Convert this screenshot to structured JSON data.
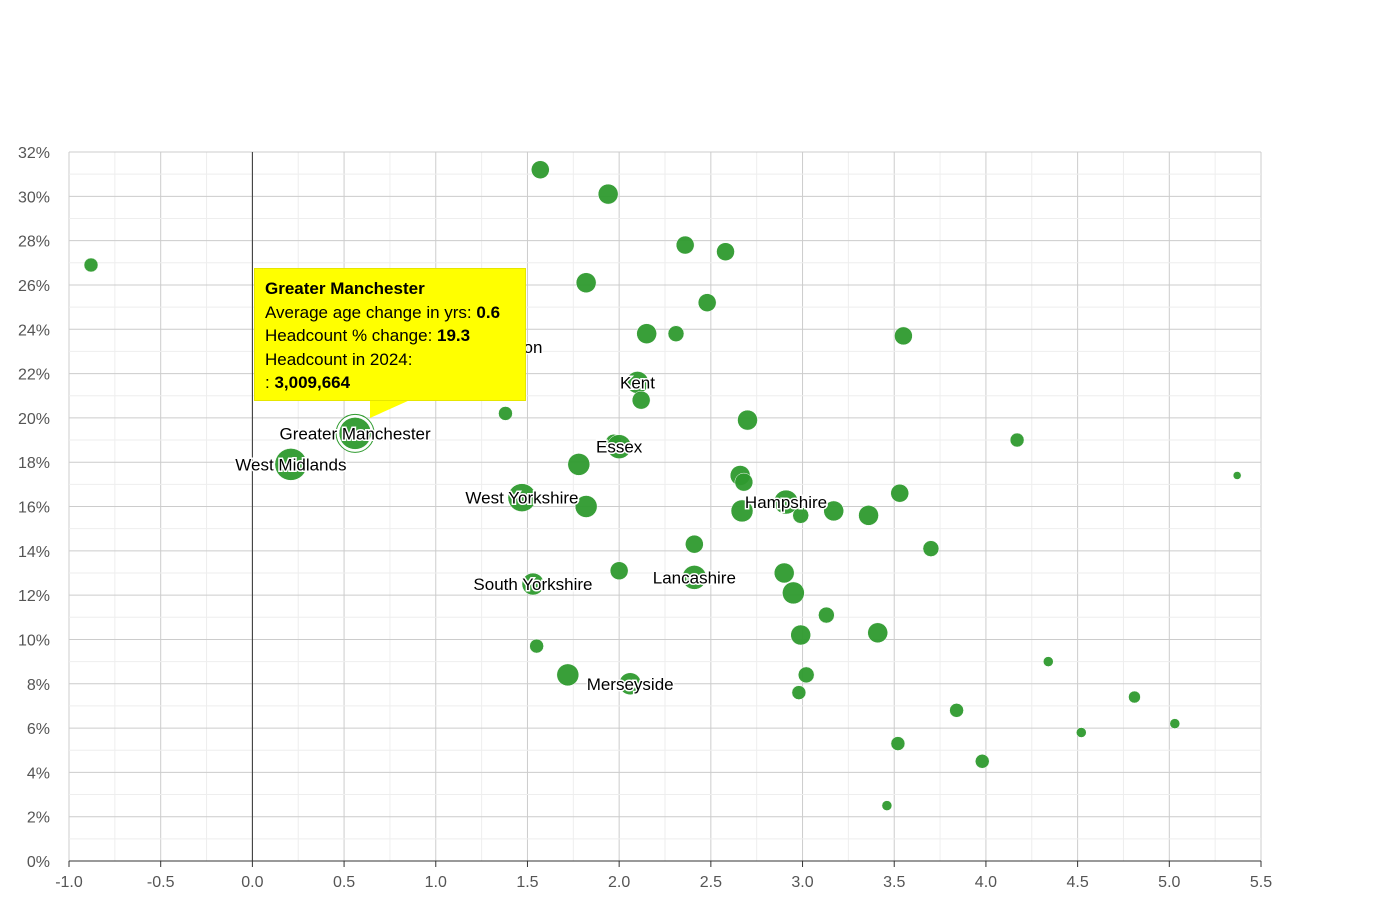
{
  "chart_data": {
    "type": "scatter",
    "subtype": "bubble",
    "title": "",
    "xlabel": "",
    "ylabel": "",
    "xlim": [
      -1.0,
      5.5
    ],
    "ylim": [
      0,
      32
    ],
    "x_ticks": [
      "-1.0",
      "-0.5",
      "0.0",
      "0.5",
      "1.0",
      "1.5",
      "2.0",
      "2.5",
      "3.0",
      "3.5",
      "4.0",
      "4.5",
      "5.0",
      "5.5"
    ],
    "y_ticks": [
      "0%",
      "2%",
      "4%",
      "6%",
      "8%",
      "10%",
      "12%",
      "14%",
      "16%",
      "18%",
      "20%",
      "22%",
      "24%",
      "26%",
      "28%",
      "30%",
      "32%"
    ],
    "grid": true,
    "color": "#2e9a2e",
    "points": [
      {
        "x": -0.88,
        "y": 26.9,
        "size": 7
      },
      {
        "x": 1.57,
        "y": 31.2,
        "size": 9
      },
      {
        "x": 1.94,
        "y": 30.1,
        "size": 10
      },
      {
        "x": 2.36,
        "y": 27.8,
        "size": 9
      },
      {
        "x": 2.58,
        "y": 27.5,
        "size": 9
      },
      {
        "x": 1.82,
        "y": 26.1,
        "size": 10
      },
      {
        "x": 2.48,
        "y": 25.2,
        "size": 9
      },
      {
        "x": 2.15,
        "y": 23.8,
        "size": 10
      },
      {
        "x": 2.31,
        "y": 23.8,
        "size": 8
      },
      {
        "x": 3.55,
        "y": 23.7,
        "size": 9
      },
      {
        "x": 1.35,
        "y": 23.2,
        "size": 13,
        "label": "London",
        "shown_label": "on"
      },
      {
        "x": 2.1,
        "y": 21.6,
        "size": 11,
        "label": "Kent"
      },
      {
        "x": 2.12,
        "y": 20.8,
        "size": 9
      },
      {
        "x": 1.38,
        "y": 20.2,
        "size": 7
      },
      {
        "x": 2.7,
        "y": 19.9,
        "size": 10
      },
      {
        "x": 0.56,
        "y": 19.3,
        "size": 16,
        "label": "Greater Manchester",
        "highlighted": true
      },
      {
        "x": 1.97,
        "y": 18.9,
        "size": 8
      },
      {
        "x": 2.0,
        "y": 18.7,
        "size": 12,
        "label": "Essex"
      },
      {
        "x": 4.17,
        "y": 19.0,
        "size": 7
      },
      {
        "x": 0.21,
        "y": 17.9,
        "size": 16,
        "label": "West Midlands"
      },
      {
        "x": 1.78,
        "y": 17.9,
        "size": 11
      },
      {
        "x": 5.37,
        "y": 17.4,
        "size": 4
      },
      {
        "x": 2.66,
        "y": 17.4,
        "size": 10
      },
      {
        "x": 2.68,
        "y": 17.1,
        "size": 9
      },
      {
        "x": 1.47,
        "y": 16.4,
        "size": 14,
        "label": "West Yorkshire"
      },
      {
        "x": 1.82,
        "y": 16.0,
        "size": 11
      },
      {
        "x": 2.91,
        "y": 16.2,
        "size": 12,
        "label": "Hampshire"
      },
      {
        "x": 2.67,
        "y": 15.8,
        "size": 11
      },
      {
        "x": 2.99,
        "y": 15.6,
        "size": 8
      },
      {
        "x": 3.17,
        "y": 15.8,
        "size": 10
      },
      {
        "x": 3.36,
        "y": 15.6,
        "size": 10
      },
      {
        "x": 3.53,
        "y": 16.6,
        "size": 9
      },
      {
        "x": 3.7,
        "y": 14.1,
        "size": 8
      },
      {
        "x": 2.41,
        "y": 14.3,
        "size": 9
      },
      {
        "x": 2.0,
        "y": 13.1,
        "size": 9
      },
      {
        "x": 1.53,
        "y": 12.5,
        "size": 11,
        "label": "South Yorkshire"
      },
      {
        "x": 2.41,
        "y": 12.8,
        "size": 12,
        "label": "Lancashire"
      },
      {
        "x": 2.9,
        "y": 13.0,
        "size": 10
      },
      {
        "x": 2.95,
        "y": 12.1,
        "size": 11
      },
      {
        "x": 3.13,
        "y": 11.1,
        "size": 8
      },
      {
        "x": 2.99,
        "y": 10.2,
        "size": 10
      },
      {
        "x": 3.41,
        "y": 10.3,
        "size": 10
      },
      {
        "x": 1.55,
        "y": 9.7,
        "size": 7
      },
      {
        "x": 1.72,
        "y": 8.4,
        "size": 11
      },
      {
        "x": 2.06,
        "y": 8.0,
        "size": 11,
        "label": "Merseyside"
      },
      {
        "x": 3.02,
        "y": 8.4,
        "size": 8
      },
      {
        "x": 2.98,
        "y": 7.6,
        "size": 7
      },
      {
        "x": 4.34,
        "y": 9.0,
        "size": 5
      },
      {
        "x": 4.81,
        "y": 7.4,
        "size": 6
      },
      {
        "x": 3.84,
        "y": 6.8,
        "size": 7
      },
      {
        "x": 5.03,
        "y": 6.2,
        "size": 5
      },
      {
        "x": 4.52,
        "y": 5.8,
        "size": 5
      },
      {
        "x": 3.52,
        "y": 5.3,
        "size": 7
      },
      {
        "x": 3.98,
        "y": 4.5,
        "size": 7
      },
      {
        "x": 3.46,
        "y": 2.5,
        "size": 5
      }
    ]
  },
  "tooltip": {
    "title": "Greater Manchester",
    "age_label": "Average age change in yrs: ",
    "age_value": "0.6",
    "headcount_change_label": "Headcount % change: ",
    "headcount_change_value": "19.3",
    "headcount_label": "Headcount in 2024:",
    "headcount_prefix": ": ",
    "headcount_value": "3,009,664",
    "background": "#ffff00"
  }
}
